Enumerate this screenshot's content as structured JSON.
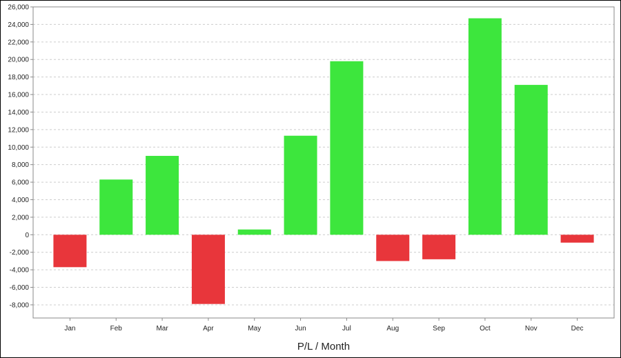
{
  "chart_data": {
    "type": "bar",
    "title": "",
    "xlabel": "P/L / Month",
    "ylabel": "",
    "categories": [
      "Jan",
      "Feb",
      "Mar",
      "Apr",
      "May",
      "Jun",
      "Jul",
      "Aug",
      "Sep",
      "Oct",
      "Nov",
      "Dec"
    ],
    "values": [
      -3700,
      6300,
      9000,
      -7900,
      600,
      11300,
      19800,
      -3000,
      -2800,
      24700,
      17100,
      -900
    ],
    "ylim": [
      -9500,
      26000
    ],
    "y_ticks": [
      -8000,
      -6000,
      -4000,
      -2000,
      0,
      2000,
      4000,
      6000,
      8000,
      10000,
      12000,
      14000,
      16000,
      18000,
      20000,
      22000,
      24000,
      26000
    ],
    "grid": true,
    "colors": {
      "positive": "#3de63d",
      "negative": "#e8363b",
      "grid": "#cccccc",
      "axis": "#888888"
    }
  }
}
